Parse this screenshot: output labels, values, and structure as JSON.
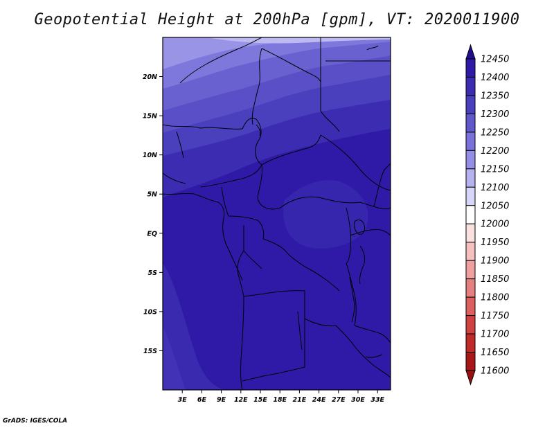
{
  "title": "Geopotential Height at 200hPa [gpm], VT: 2020011900",
  "credit": "GrADS: IGES/COLA",
  "map": {
    "lon_range": [
      0,
      35
    ],
    "lat_range": [
      -20,
      25
    ],
    "lat_ticks": [
      {
        "lat": 20,
        "label": "20N"
      },
      {
        "lat": 15,
        "label": "15N"
      },
      {
        "lat": 10,
        "label": "10N"
      },
      {
        "lat": 5,
        "label": "5N"
      },
      {
        "lat": 0,
        "label": "EQ"
      },
      {
        "lat": -5,
        "label": "5S"
      },
      {
        "lat": -10,
        "label": "10S"
      },
      {
        "lat": -15,
        "label": "15S"
      }
    ],
    "lon_ticks": [
      {
        "lon": 3,
        "label": "3E"
      },
      {
        "lon": 6,
        "label": "6E"
      },
      {
        "lon": 9,
        "label": "9E"
      },
      {
        "lon": 12,
        "label": "12E"
      },
      {
        "lon": 15,
        "label": "15E"
      },
      {
        "lon": 18,
        "label": "18E"
      },
      {
        "lon": 21,
        "label": "21E"
      },
      {
        "lon": 24,
        "label": "24E"
      },
      {
        "lon": 27,
        "label": "27E"
      },
      {
        "lon": 30,
        "label": "30E"
      },
      {
        "lon": 33,
        "label": "33E"
      }
    ]
  },
  "colorbar": {
    "levels": [
      {
        "label": "12450",
        "color": "#2a14a4"
      },
      {
        "label": "12400",
        "color": "#2f1aa8"
      },
      {
        "label": "12350",
        "color": "#3b2cb2"
      },
      {
        "label": "12300",
        "color": "#4a40be"
      },
      {
        "label": "12250",
        "color": "#6158cc"
      },
      {
        "label": "12200",
        "color": "#7a72da"
      },
      {
        "label": "12150",
        "color": "#948ee6"
      },
      {
        "label": "12100",
        "color": "#b6b2f0"
      },
      {
        "label": "12050",
        "color": "#d8d6f8"
      },
      {
        "label": "12000",
        "color": "#ffffff"
      },
      {
        "label": "11950",
        "color": "#fbe0e0"
      },
      {
        "label": "11900",
        "color": "#f6c0c0"
      },
      {
        "label": "11850",
        "color": "#ef9f9f"
      },
      {
        "label": "11800",
        "color": "#e68080"
      },
      {
        "label": "11750",
        "color": "#dc6060"
      },
      {
        "label": "11700",
        "color": "#d04242"
      },
      {
        "label": "11650",
        "color": "#c02a2a"
      },
      {
        "label": "11600",
        "color": "#a81818"
      }
    ],
    "top_color": "#20108f",
    "bottom_color": "#9a1010"
  }
}
